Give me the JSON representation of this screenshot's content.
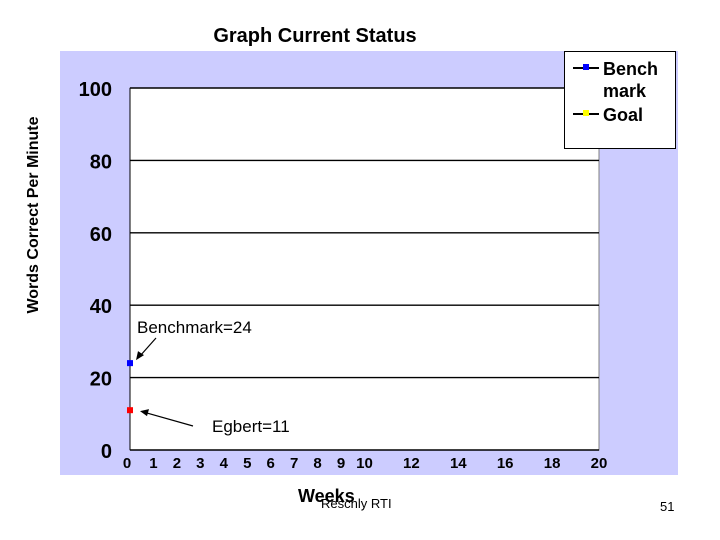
{
  "slide": {
    "title": "Graph Current Status",
    "source": "Reschly RTI",
    "page_number": "51"
  },
  "chart_data": {
    "type": "scatter",
    "title": "Graph Current Status",
    "xlabel": "Weeks",
    "ylabel": "Words Correct Per Minute",
    "x_ticks": [
      0,
      1,
      2,
      3,
      4,
      5,
      6,
      7,
      8,
      9,
      10,
      12,
      14,
      16,
      18,
      20
    ],
    "y_ticks": [
      0,
      20,
      40,
      60,
      80,
      100
    ],
    "xlim": [
      0,
      20
    ],
    "ylim": [
      0,
      100
    ],
    "grid": "horizontal",
    "legend_position": "top-right",
    "legend": [
      {
        "label": "Bench mark",
        "color": "#0000ff"
      },
      {
        "label": "Goal",
        "color": "#ffff00"
      }
    ],
    "series": [
      {
        "name": "Bench mark",
        "color": "#0000ff",
        "points": [
          {
            "x": 0,
            "y": 24
          }
        ]
      },
      {
        "name": "Egbert",
        "color": "#ff0000",
        "points": [
          {
            "x": 0,
            "y": 11
          }
        ]
      }
    ],
    "annotations": [
      {
        "text": "Benchmark=24",
        "x": 0,
        "y": 24
      },
      {
        "text": "Egbert=11",
        "x": 0,
        "y": 11
      }
    ],
    "colors": {
      "outer_background": "#ccccff",
      "plot_background": "#ffffff",
      "gridline": "#000000"
    }
  }
}
